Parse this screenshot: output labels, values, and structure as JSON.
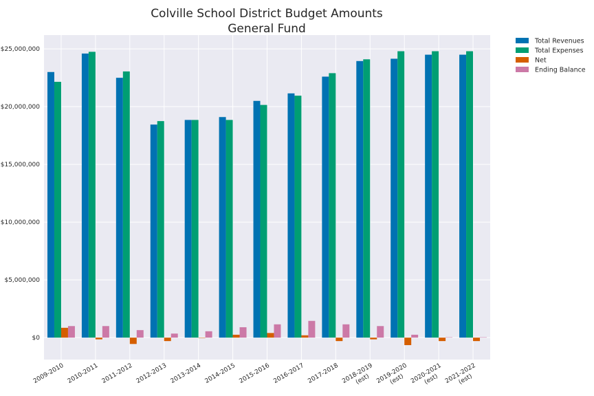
{
  "chart_data": {
    "type": "bar",
    "title": [
      "Colville School District Budget Amounts",
      "General Fund"
    ],
    "xlabel": "",
    "ylabel": "",
    "categories": [
      [
        "2009-2010"
      ],
      [
        "2010-2011"
      ],
      [
        "2011-2012"
      ],
      [
        "2012-2013"
      ],
      [
        "2013-2014"
      ],
      [
        "2014-2015"
      ],
      [
        "2015-2016"
      ],
      [
        "2016-2017"
      ],
      [
        "2017-2018"
      ],
      [
        "2018-2019",
        "(est)"
      ],
      [
        "2019-2020",
        "(est)"
      ],
      [
        "2020-2021",
        "(est)"
      ],
      [
        "2021-2022",
        "(est)"
      ]
    ],
    "series": [
      {
        "name": "Total Revenues",
        "color": "#0072b2",
        "values": [
          23000000,
          24600000,
          22500000,
          18450000,
          18850000,
          19100000,
          20500000,
          21150000,
          22600000,
          23950000,
          24150000,
          24500000,
          24500000
        ]
      },
      {
        "name": "Total Expenses",
        "color": "#009e73",
        "values": [
          22150000,
          24750000,
          23050000,
          18750000,
          18850000,
          18850000,
          20150000,
          20950000,
          22900000,
          24100000,
          24800000,
          24800000,
          24800000
        ]
      },
      {
        "name": "Net",
        "color": "#d55e00",
        "values": [
          850000,
          -150000,
          -550000,
          -300000,
          0,
          250000,
          400000,
          200000,
          -300000,
          -150000,
          -650000,
          -300000,
          -300000
        ]
      },
      {
        "name": "Ending Balance",
        "color": "#cc79a7",
        "values": [
          1000000,
          1000000,
          650000,
          350000,
          550000,
          900000,
          1150000,
          1450000,
          1150000,
          1000000,
          250000,
          30000,
          30000
        ]
      }
    ],
    "ylim": [
      -1900000,
      26200000
    ],
    "yticks": [
      0,
      5000000,
      10000000,
      15000000,
      20000000,
      25000000
    ],
    "ytick_labels": [
      "$0",
      "$5,000,000",
      "$10,000,000",
      "$15,000,000",
      "$20,000,000",
      "$25,000,000"
    ],
    "grid": true,
    "legend_position": "outside-top-right",
    "background": "#eaeaf2"
  }
}
